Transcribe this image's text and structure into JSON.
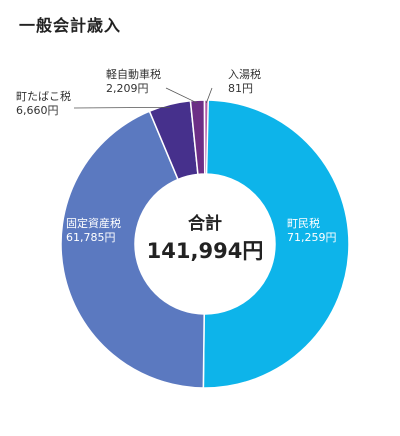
{
  "chart_data": {
    "type": "pie",
    "style": "donut",
    "title": "一般会計歳入",
    "center_label": "合計",
    "center_value": "141,994円",
    "unit": "円",
    "slices": [
      {
        "label": "町民税",
        "value": 71259,
        "value_text": "71,259円",
        "color": "#0db4ea"
      },
      {
        "label": "固定資産税",
        "value": 61785,
        "value_text": "61,785円",
        "color": "#5b79c0"
      },
      {
        "label": "町たばこ税",
        "value": 6660,
        "value_text": "6,660円",
        "color": "#46308c"
      },
      {
        "label": "軽自動車税",
        "value": 2209,
        "value_text": "2,209円",
        "color": "#6c2e86"
      },
      {
        "label": "入湯税",
        "value": 81,
        "value_text": "81円",
        "color": "#b25ba8"
      }
    ]
  }
}
